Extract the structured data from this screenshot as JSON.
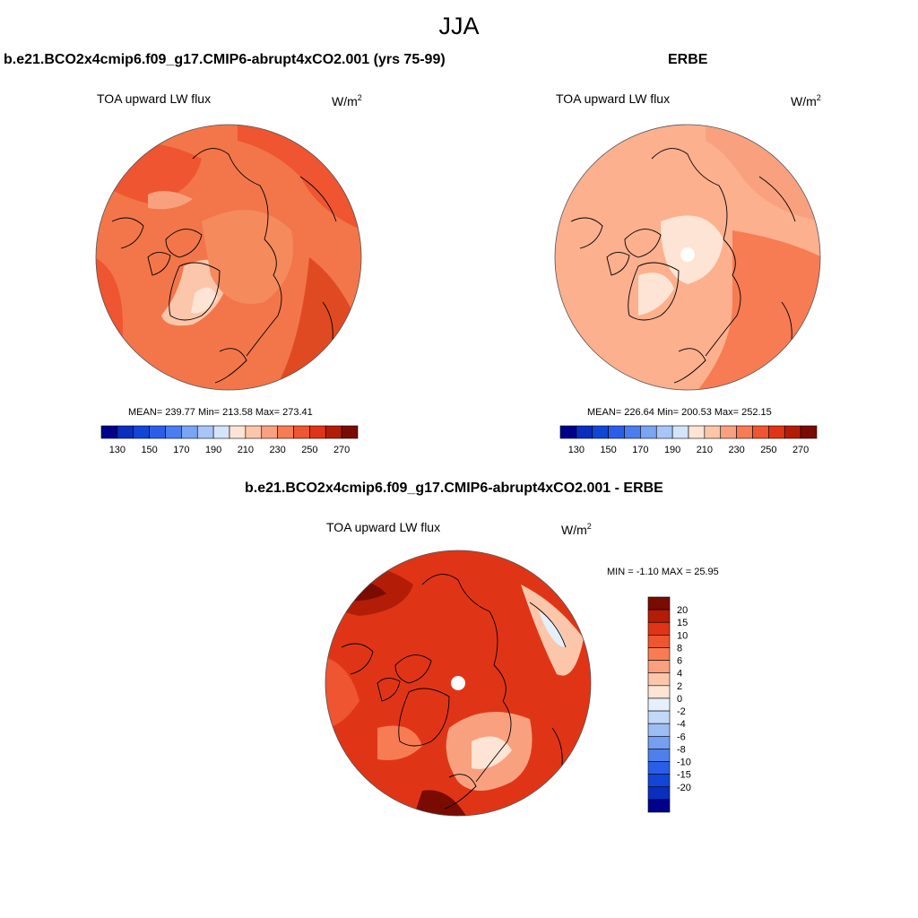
{
  "figure": {
    "title": "JJA",
    "panels": [
      {
        "id": "model",
        "case_title": "b.e21.BCO2x4cmip6.f09_g17.CMIP6-abrupt4xCO2.001 (yrs 75-99)",
        "variable": "TOA upward LW flux",
        "units": "W/m",
        "units_exp": "2",
        "stats_text": "MEAN= 239.77  Min= 213.58  Max= 273.41"
      },
      {
        "id": "obs",
        "case_title": "ERBE",
        "variable": "TOA upward LW flux",
        "units": "W/m",
        "units_exp": "2",
        "stats_text": "MEAN= 226.64  Min= 200.53  Max= 252.15"
      },
      {
        "id": "diff",
        "case_title": "b.e21.BCO2x4cmip6.f09_g17.CMIP6-abrupt4xCO2.001 - ERBE",
        "variable": "TOA upward LW flux",
        "units": "W/m",
        "units_exp": "2",
        "stats_text": "MIN =  -1.10 MAX =  25.95"
      }
    ]
  },
  "chart_data": [
    {
      "type": "heatmap",
      "panel": "model",
      "projection": "north polar stereographic",
      "mean": 239.77,
      "min": 213.58,
      "max": 273.41,
      "colorbar": {
        "orientation": "horizontal",
        "levels": [
          130,
          140,
          150,
          160,
          170,
          180,
          190,
          200,
          210,
          220,
          230,
          240,
          250,
          260,
          270
        ],
        "tick_labels": [
          "130",
          "150",
          "170",
          "190",
          "210",
          "230",
          "250",
          "270"
        ],
        "colors": [
          "#00008b",
          "#0a2fbf",
          "#1246d8",
          "#2a5ee8",
          "#4a7ef0",
          "#7aa4f4",
          "#a9c5f7",
          "#d3e4fb",
          "#fde4d4",
          "#fcc6aa",
          "#f9a17e",
          "#f77c53",
          "#ee5530",
          "#df3516",
          "#b31d08",
          "#7a0b00"
        ]
      }
    },
    {
      "type": "heatmap",
      "panel": "obs",
      "projection": "north polar stereographic",
      "mean": 226.64,
      "min": 200.53,
      "max": 252.15,
      "colorbar": {
        "orientation": "horizontal",
        "levels": [
          130,
          140,
          150,
          160,
          170,
          180,
          190,
          200,
          210,
          220,
          230,
          240,
          250,
          260,
          270
        ],
        "tick_labels": [
          "130",
          "150",
          "170",
          "190",
          "210",
          "230",
          "250",
          "270"
        ],
        "colors": [
          "#00008b",
          "#0a2fbf",
          "#1246d8",
          "#2a5ee8",
          "#4a7ef0",
          "#7aa4f4",
          "#a9c5f7",
          "#d3e4fb",
          "#fde4d4",
          "#fcc6aa",
          "#f9a17e",
          "#f77c53",
          "#ee5530",
          "#df3516",
          "#b31d08",
          "#7a0b00"
        ]
      }
    },
    {
      "type": "heatmap",
      "panel": "diff",
      "projection": "north polar stereographic",
      "min": -1.1,
      "max": 25.95,
      "colorbar": {
        "orientation": "vertical",
        "tick_labels": [
          "20",
          "15",
          "10",
          "8",
          "6",
          "4",
          "2",
          "0",
          "-2",
          "-4",
          "-6",
          "-8",
          "-10",
          "-15",
          "-20"
        ],
        "colors": [
          "#7a0b00",
          "#b31d08",
          "#df3516",
          "#ee5530",
          "#f77c53",
          "#f9a17e",
          "#fcc6aa",
          "#fde4d4",
          "#e6f0fc",
          "#c2d8f8",
          "#9dbdf5",
          "#769ff0",
          "#4f80ea",
          "#2a5ee8",
          "#1246d8",
          "#0a2fbf",
          "#00008b"
        ]
      }
    }
  ]
}
